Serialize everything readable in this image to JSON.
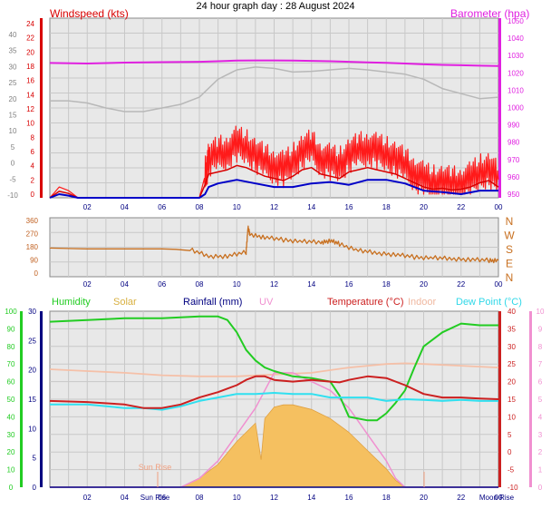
{
  "title": "24 hour graph day : 28 August 2024",
  "colors": {
    "windspeed": "#d80000",
    "gust": "#ff1a1a",
    "wind_avg": "#0000c8",
    "barometer": "#e020e0",
    "barometer_ghost": "#b8b8b8",
    "direction": "#c87020",
    "humidity": "#22cc22",
    "solar": "#f5c060",
    "rainfall": "#000080",
    "uv": "#f090d0",
    "temperature": "#cc2020",
    "indoor": "#f5c0a8",
    "dew_point": "#30e0f0",
    "panel_bg": "#e8e8e8",
    "grid": "#c8c8c8"
  },
  "chart_data": [
    {
      "type": "line",
      "panel": "wind",
      "left_axis_label": "Windspeed (kts)",
      "right_axis_label": "Barometer (hpa)",
      "x_ticks": [
        "02",
        "04",
        "06",
        "08",
        "10",
        "12",
        "14",
        "16",
        "18",
        "20",
        "22",
        "00"
      ],
      "xlim": [
        0,
        24
      ],
      "outer_left_ticks": [
        "40",
        "35",
        "30",
        "25",
        "20",
        "15",
        "10",
        "5",
        "0",
        "-5",
        "-10"
      ],
      "left_ticks": [
        "24",
        "22",
        "20",
        "18",
        "16",
        "14",
        "12",
        "10",
        "8",
        "6",
        "4",
        "2",
        "0"
      ],
      "ylim_wind": [
        0,
        25
      ],
      "right_ticks": [
        "1050",
        "1040",
        "1030",
        "1020",
        "1010",
        "1000",
        "990",
        "980",
        "970",
        "960",
        "950"
      ],
      "ylim_baro": [
        945,
        1050
      ],
      "series": [
        {
          "name": "Barometer (hpa)",
          "x": [
            0,
            2,
            4,
            6,
            8,
            9,
            10,
            11,
            12,
            13,
            14,
            15,
            16,
            17,
            18,
            19,
            20,
            21,
            22,
            23,
            24
          ],
          "y": [
            1023.8,
            1023.5,
            1024.0,
            1024.3,
            1024.5,
            1024.8,
            1025.2,
            1025.3,
            1025.3,
            1025.2,
            1025.0,
            1024.8,
            1024.5,
            1024.2,
            1023.9,
            1023.5,
            1023.0,
            1022.7,
            1022.5,
            1022.2,
            1022.0
          ]
        },
        {
          "name": "barometer_ghost_scaled",
          "x": [
            0,
            1,
            2,
            3,
            4,
            5,
            6,
            7,
            8,
            9,
            10,
            11,
            12,
            13,
            14,
            15,
            16,
            17,
            18,
            19,
            20,
            21,
            22,
            23,
            24
          ],
          "y": [
            13.5,
            13.5,
            13.2,
            12.5,
            12,
            12,
            12.5,
            13,
            14,
            16.5,
            17.8,
            18.2,
            18,
            17.5,
            17.6,
            17.8,
            18,
            17.8,
            17.5,
            17.2,
            16.5,
            15.2,
            14.5,
            13.8,
            14
          ]
        },
        {
          "name": "gust",
          "x": [
            0,
            0.5,
            1,
            1.5,
            2,
            4,
            6,
            8,
            8.3,
            8.5,
            9,
            9.5,
            10,
            10.5,
            11,
            11.5,
            12,
            12.5,
            13,
            13.5,
            14,
            14.5,
            15,
            15.5,
            16,
            16.5,
            17,
            17.5,
            18,
            18.5,
            19,
            19.5,
            20,
            20.5,
            21,
            21.5,
            22,
            22.5,
            23,
            23.5,
            24
          ],
          "y": [
            0,
            1.5,
            1,
            0,
            0,
            0,
            0,
            0,
            3,
            5.5,
            6,
            6.5,
            7.5,
            7,
            6,
            5,
            4.5,
            4,
            5,
            6.5,
            7,
            5.5,
            5,
            4.5,
            6,
            6.5,
            7,
            6.5,
            6,
            5.5,
            4.5,
            3.5,
            2.5,
            2,
            2.2,
            1.8,
            2,
            2.5,
            3.5,
            4,
            2.5
          ]
        },
        {
          "name": "wind_avg",
          "x": [
            0,
            0.5,
            1,
            1.5,
            2,
            4,
            6,
            8,
            8.3,
            8.5,
            9,
            10,
            11,
            12,
            13,
            14,
            15,
            16,
            17,
            18,
            19,
            20,
            21,
            22,
            23,
            24
          ],
          "y": [
            0,
            0.5,
            0.3,
            0,
            0,
            0,
            0,
            0,
            0.5,
            1.5,
            2,
            2.5,
            2,
            1.5,
            1.5,
            2,
            2.2,
            1.8,
            2.5,
            2.5,
            2,
            1,
            0.8,
            0.5,
            1,
            1
          ]
        }
      ]
    },
    {
      "type": "scatter",
      "panel": "direction",
      "x_ticks": [
        "02",
        "04",
        "06",
        "08",
        "10",
        "12",
        "14",
        "16",
        "18",
        "20",
        "22",
        "00"
      ],
      "xlim": [
        0,
        24
      ],
      "y_ticks": [
        "360",
        "270",
        "180",
        "90",
        "0"
      ],
      "ylim": [
        0,
        360
      ],
      "compass_labels": [
        "N",
        "W",
        "S",
        "E",
        "N"
      ],
      "series": [
        {
          "name": "direction",
          "x": [
            0,
            2,
            4,
            6,
            7.5,
            8.5,
            9.5,
            10.5,
            10.6,
            10.7,
            11.5,
            12.5,
            13.5,
            14.5,
            15,
            15.5,
            16.5,
            17.5,
            18.5,
            19.5,
            20.5,
            21.5,
            22.5,
            23.5,
            24
          ],
          "y": [
            175,
            170,
            170,
            170,
            165,
            125,
            125,
            150,
            300,
            260,
            240,
            225,
            215,
            210,
            220,
            200,
            160,
            145,
            135,
            120,
            115,
            110,
            105,
            100,
            100
          ]
        }
      ]
    },
    {
      "type": "line",
      "panel": "temperature",
      "legend": [
        "Humidity",
        "Solar",
        "Rainfall (mm)",
        "UV",
        "Temperature (°C)",
        "Indoor",
        "Dew Point (°C)"
      ],
      "x_ticks": [
        "02",
        "04",
        "06",
        "08",
        "10",
        "12",
        "14",
        "16",
        "18",
        "20",
        "22",
        "00"
      ],
      "xlim": [
        0,
        24
      ],
      "humidity_ticks": [
        "100",
        "90",
        "80",
        "70",
        "60",
        "50",
        "40",
        "30",
        "20",
        "10",
        "0"
      ],
      "rain_ticks": [
        "30",
        "25",
        "20",
        "15",
        "10",
        "5",
        "0"
      ],
      "temp_ticks": [
        "40",
        "35",
        "30",
        "25",
        "20",
        "15",
        "10",
        "5",
        "0",
        "-5",
        "-10"
      ],
      "uv_ticks": [
        "10",
        "9",
        "8",
        "7",
        "6",
        "5",
        "4",
        "3",
        "2",
        "1",
        "0"
      ],
      "ylim_humidity": [
        0,
        100
      ],
      "ylim_temp": [
        -10,
        40
      ],
      "annotations": [
        "Sun Rise",
        "Sun Rise",
        "Moon Rise"
      ],
      "series": [
        {
          "name": "Humidity",
          "x": [
            0,
            2,
            4,
            6,
            8,
            9,
            9.5,
            10,
            10.5,
            11,
            11.5,
            12,
            13,
            14,
            15,
            15.5,
            16,
            17,
            17.5,
            18,
            18.5,
            19,
            19.5,
            20,
            21,
            22,
            23,
            24
          ],
          "y": [
            94,
            95,
            96,
            96,
            97,
            97,
            95,
            88,
            78,
            72,
            68,
            66,
            63,
            62,
            60,
            52,
            40,
            38,
            38,
            42,
            48,
            55,
            68,
            80,
            88,
            93,
            92,
            92
          ]
        },
        {
          "name": "Temperature (°C)",
          "x": [
            0,
            2,
            4,
            5,
            6,
            7,
            8,
            9,
            10,
            10.5,
            11,
            11.5,
            12,
            13,
            14,
            15,
            15.5,
            16,
            17,
            18,
            19,
            20,
            21,
            22,
            23,
            24
          ],
          "y": [
            14.5,
            14.2,
            13.5,
            12.5,
            12.5,
            13.5,
            15.5,
            17,
            19,
            20.5,
            21.5,
            21.5,
            20.5,
            20,
            20.5,
            20,
            19.8,
            20.5,
            21.5,
            21,
            19,
            16.5,
            15.5,
            15.5,
            15.2,
            15
          ]
        },
        {
          "name": "Indoor",
          "x": [
            0,
            2,
            4,
            6,
            8,
            10,
            12,
            14,
            16,
            18,
            19,
            20,
            22,
            24
          ],
          "y": [
            23.5,
            23,
            22.5,
            21.8,
            21.5,
            21.5,
            22,
            22.5,
            24,
            25,
            25.2,
            25,
            24.5,
            24
          ]
        },
        {
          "name": "Dew Point (°C)",
          "x": [
            0,
            2,
            4,
            5,
            6,
            7,
            8,
            9,
            10,
            11,
            12,
            13,
            14,
            15,
            16,
            17,
            18,
            19,
            20,
            21,
            22,
            23,
            24
          ],
          "y": [
            13.5,
            13.5,
            12.5,
            12.5,
            12,
            13,
            14.5,
            15.5,
            16.5,
            16.5,
            16.8,
            16.5,
            16.5,
            15.5,
            15.5,
            15.5,
            14.5,
            15,
            14.8,
            14.5,
            14.8,
            14.5,
            14.5
          ]
        },
        {
          "name": "UV",
          "x": [
            0,
            7,
            8,
            9,
            10,
            11,
            11.5,
            12,
            12.5,
            13,
            14,
            15,
            16,
            17,
            18,
            18.5,
            19,
            24
          ],
          "y": [
            0,
            0,
            0.5,
            1.5,
            3,
            4.5,
            5.5,
            6.5,
            6.5,
            6.5,
            6,
            5.5,
            4.5,
            3,
            1.5,
            0.5,
            0,
            0
          ]
        },
        {
          "name": "Solar",
          "x": [
            0,
            7,
            8,
            9,
            10,
            11,
            11.3,
            11.5,
            12,
            12.5,
            13,
            14,
            15,
            16,
            17,
            18,
            18.5,
            19,
            24
          ],
          "y": [
            0,
            0,
            4,
            10,
            20,
            28,
            12,
            30,
            35,
            36,
            36,
            34,
            30,
            24,
            16,
            8,
            3,
            0,
            0
          ]
        },
        {
          "name": "Rainfall (mm)",
          "x": [
            0,
            24
          ],
          "y": [
            0,
            0
          ]
        }
      ]
    }
  ]
}
